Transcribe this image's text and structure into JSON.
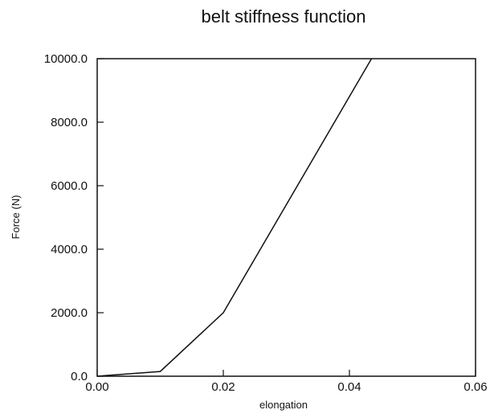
{
  "chart_data": {
    "type": "line",
    "title": "belt stiffness function",
    "xlabel": "elongation",
    "ylabel": "Force (N)",
    "xlim": [
      0,
      0.06
    ],
    "ylim": [
      0,
      10000
    ],
    "xticks": [
      0,
      0.02,
      0.04,
      0.06
    ],
    "xtick_labels": [
      "0.00",
      "0.02",
      "0.04",
      "0.06"
    ],
    "yticks": [
      0,
      2000,
      4000,
      6000,
      8000,
      10000
    ],
    "ytick_labels": [
      "0.0",
      "2000.0",
      "4000.0",
      "6000.0",
      "8000.0",
      "10000.0"
    ],
    "grid": false,
    "series": [
      {
        "x": [
          0,
          0.01,
          0.02,
          0.0435
        ],
        "y": [
          0,
          150,
          2000,
          10000
        ]
      }
    ],
    "colors": {
      "line": "#111111",
      "axes": "#111111"
    }
  }
}
